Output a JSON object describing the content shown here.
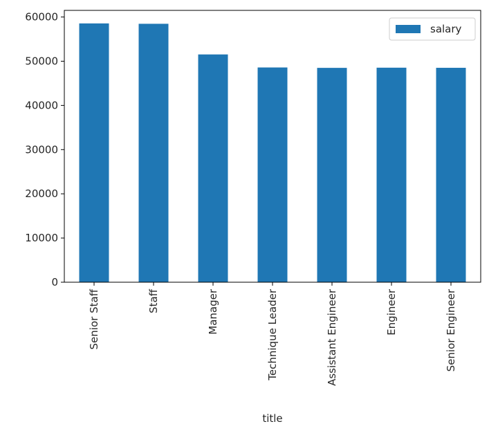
{
  "chart_data": {
    "type": "bar",
    "title": "",
    "xlabel": "title",
    "ylabel": "",
    "categories": [
      "Senior Staff",
      "Staff",
      "Manager",
      "Technique Leader",
      "Assistant Engineer",
      "Engineer",
      "Senior Engineer"
    ],
    "series": [
      {
        "name": "salary",
        "values": [
          58550,
          58465,
          51531,
          48583,
          48494,
          48535,
          48507
        ]
      }
    ],
    "ylim": [
      0,
      61500
    ],
    "yticks": [
      0,
      10000,
      20000,
      30000,
      40000,
      50000,
      60000
    ],
    "grid": false,
    "legend": "top-right",
    "colors": {
      "bar": "#1f77b4",
      "axis": "#000000"
    }
  }
}
